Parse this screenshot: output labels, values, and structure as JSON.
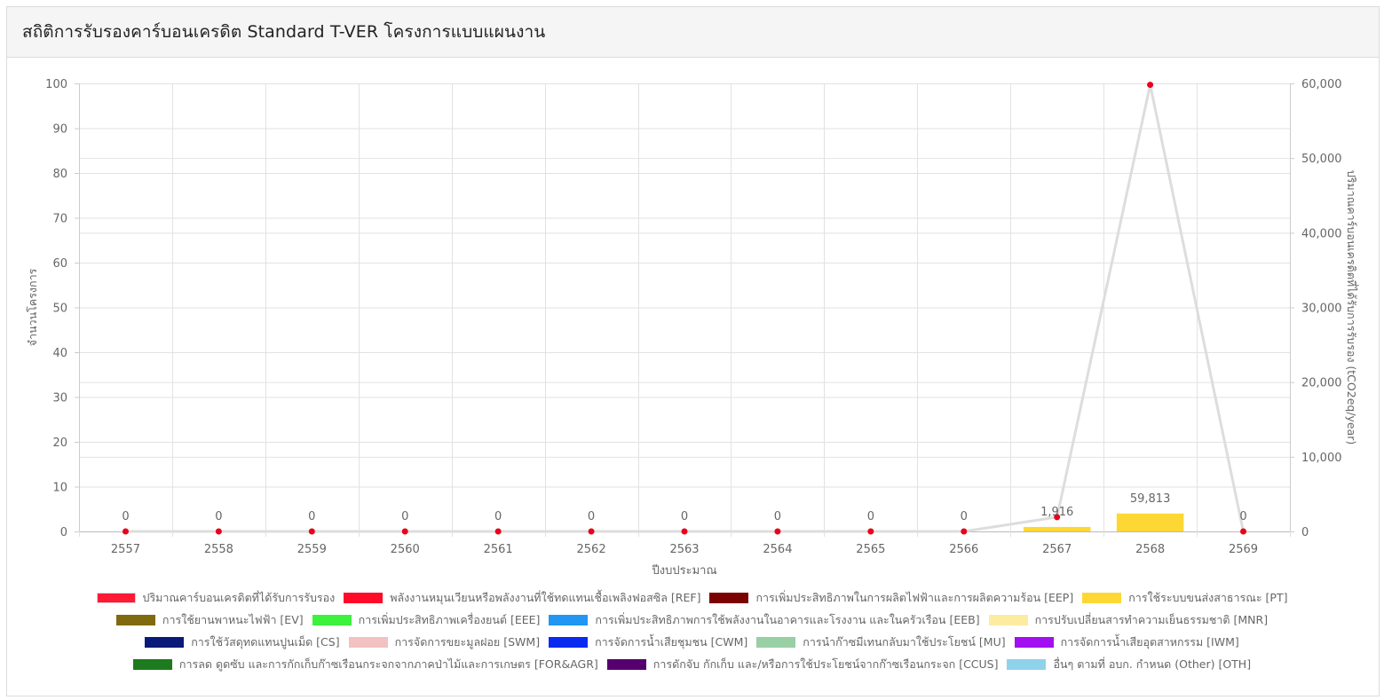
{
  "header": {
    "title": "สถิติการรับรองคาร์บอนเครดิต Standard T-VER โครงการแบบแผนงาน"
  },
  "chart_data": {
    "type": "bar",
    "categories": [
      "2557",
      "2558",
      "2559",
      "2560",
      "2561",
      "2562",
      "2563",
      "2564",
      "2565",
      "2566",
      "2567",
      "2568",
      "2569"
    ],
    "xlabel": "ปีงบประมาณ",
    "ylabel_left": "จำนวนโครงการ",
    "ylabel_right": "ปริมาณคาร์บอนเครดิตที่ได้รับการรับรอง (tCO2eq/year)",
    "y_left_lim": [
      0,
      100
    ],
    "y_left_ticks": [
      "100",
      "90",
      "80",
      "70",
      "60",
      "50",
      "40",
      "30",
      "20",
      "10",
      "0"
    ],
    "y_right_lim": [
      0,
      60000
    ],
    "y_right_ticks": [
      "60,000",
      "50,000",
      "40,000",
      "30,000",
      "20,000",
      "10,000",
      "0"
    ],
    "grid": true,
    "legend_position": "bottom",
    "bar_series": [
      {
        "name": "การใช้ระบบขนส่งสาธารณะ [PT]",
        "color": "#fdd835",
        "values": [
          0,
          0,
          0,
          0,
          0,
          0,
          0,
          0,
          0,
          0,
          1,
          4,
          0
        ]
      }
    ],
    "line_series": {
      "name": "ปริมาณคาร์บอนเครดิตที่ได้รับการรับรอง",
      "line_color": "#dddddd",
      "point_color": "#e8001c",
      "values": [
        0,
        0,
        0,
        0,
        0,
        0,
        0,
        0,
        0,
        0,
        1916,
        59813,
        0
      ],
      "data_labels": [
        "0",
        "0",
        "0",
        "0",
        "0",
        "0",
        "0",
        "0",
        "0",
        "0",
        "1,916",
        "59,813",
        "0"
      ]
    }
  },
  "legend": {
    "rows": [
      [
        {
          "label": "ปริมาณคาร์บอนเครดิตที่ได้รับการรับรอง",
          "color": "#ff1a35",
          "border": "#d8d8d8"
        },
        {
          "label": "พลังงานหมุนเวียนหรือพลังงานที่ใช้ทดแทนเชื้อเพลิงฟอสซิล [REF]",
          "color": "#ff0a28"
        },
        {
          "label": "การเพิ่มประสิทธิภาพในการผลิตไฟฟ้าและการผลิตความร้อน [EEP]",
          "color": "#7b0000"
        },
        {
          "label": "การใช้ระบบขนส่งสาธารณะ [PT]",
          "color": "#fdd835"
        }
      ],
      [
        {
          "label": "การใช้ยานพาหนะไฟฟ้า [EV]",
          "color": "#806a10"
        },
        {
          "label": "การเพิ่มประสิทธิภาพเครื่องยนต์ [EEE]",
          "color": "#3cf23c"
        },
        {
          "label": "การเพิ่มประสิทธิภาพการใช้พลังงานในอาคารและโรงงาน และในครัวเรือน [EEB]",
          "color": "#2196f3"
        },
        {
          "label": "การปรับเปลี่ยนสารทำความเย็นธรรมชาติ [MNR]",
          "color": "#fdeba0"
        }
      ],
      [
        {
          "label": "การใช้วัสดุทดแทนปูนเม็ด [CS]",
          "color": "#0a1a78"
        },
        {
          "label": "การจัดการขยะมูลฝอย [SWM]",
          "color": "#f2c1c1"
        },
        {
          "label": "การจัดการน้ำเสียชุมชน [CWM]",
          "color": "#0a2af0"
        },
        {
          "label": "การนำก๊าซมีเทนกลับมาใช้ประโยชน์ [MU]",
          "color": "#98cfa4"
        },
        {
          "label": "การจัดการน้ำเสียอุตสาหกรรม [IWM]",
          "color": "#a20ff0"
        }
      ],
      [
        {
          "label": "การลด ดูดซับ และการกักเก็บก๊าซเรือนกระจกจากภาคป่าไม้และการเกษตร [FOR&AGR]",
          "color": "#1e7a1e"
        },
        {
          "label": "การดักจับ กักเก็บ และ/หรือการใช้ประโยชน์จากก๊าซเรือนกระจก [CCUS]",
          "color": "#55006e"
        },
        {
          "label": "อื่นๆ ตามที่ อบก. กำหนด (Other) [OTH]",
          "color": "#8ed3ea"
        }
      ]
    ]
  }
}
